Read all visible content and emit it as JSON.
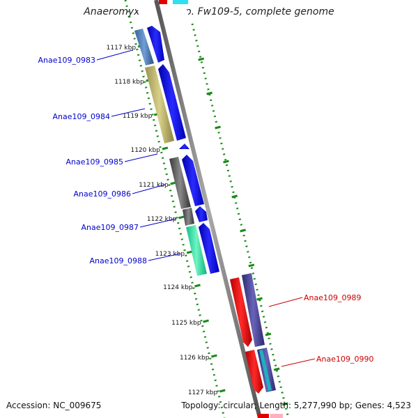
{
  "title": "Anaeromyxobacter sp. Fw109-5, complete genome",
  "footer": {
    "accession": "Accession: NC_009675",
    "summary": "Topology: circular; Length: 5,277,990 bp; Genes: 4,523"
  },
  "scale_ticks": [
    "1117 kbp",
    "1118 kbp",
    "1119 kbp",
    "1120 kbp",
    "1121 kbp",
    "1122 kbp",
    "1123 kbp",
    "1124 kbp",
    "1125 kbp",
    "1126 kbp",
    "1127 kbp"
  ],
  "gene_labels": [
    {
      "text": "Anae109_0983",
      "color": "#0000cc"
    },
    {
      "text": "Anae109_0984",
      "color": "#0000cc"
    },
    {
      "text": "Anae109_0985",
      "color": "#0000cc"
    },
    {
      "text": "Anae109_0986",
      "color": "#0000cc"
    },
    {
      "text": "Anae109_0987",
      "color": "#0000cc"
    },
    {
      "text": "Anae109_0988",
      "color": "#0000cc"
    },
    {
      "text": "Anae109_0989",
      "color": "#cc0000"
    },
    {
      "text": "Anae109_0990",
      "color": "#cc0000"
    }
  ],
  "colors": {
    "scale_green": "#1a8a1a",
    "backbone": "#808080",
    "forward_cds": "#0000ee",
    "reverse_cds": "#ee0000"
  }
}
